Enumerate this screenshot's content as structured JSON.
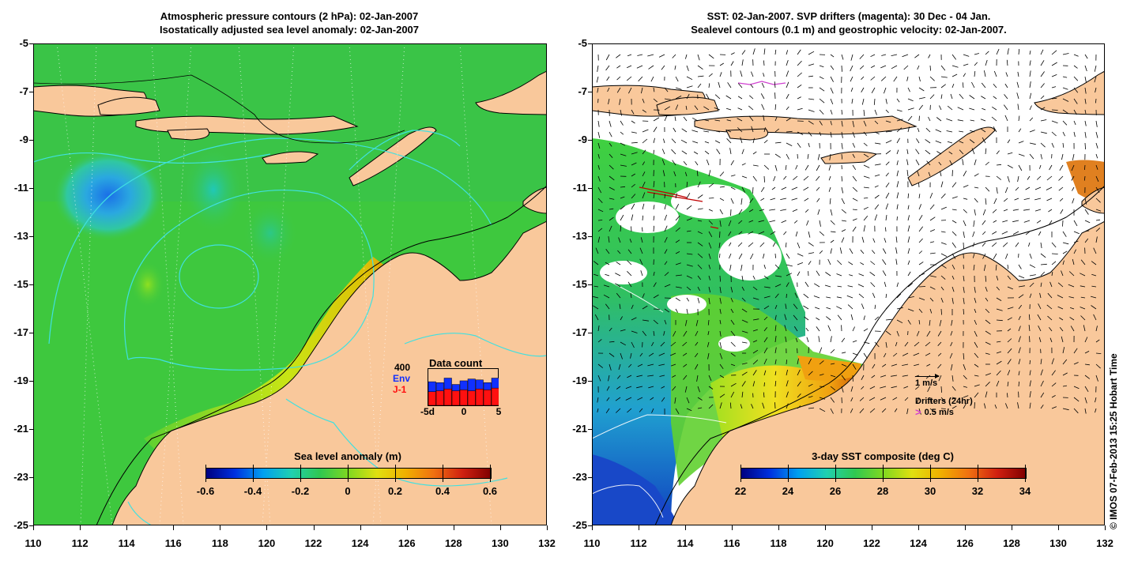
{
  "left_panel": {
    "title_line1": "Atmospheric pressure contours (2 hPa): 02-Jan-2007",
    "title_line2": "Isostatically adjusted sea level anomaly: 02-Jan-2007",
    "colorbar_title": "Sea level anomaly (m)",
    "colorbar_ticks": [
      "-0.6",
      "-0.4",
      "-0.2",
      "0",
      "0.2",
      "0.4",
      "0.6"
    ],
    "data_count": {
      "title": "Data count",
      "max_label": "400",
      "env_label": "Env",
      "j1_label": "J-1",
      "x_ticks": [
        "-5d",
        "0",
        "5"
      ],
      "env_values": [
        260,
        250,
        300,
        230,
        270,
        290,
        280,
        250,
        300
      ],
      "j1_values": [
        150,
        160,
        180,
        160,
        170,
        160,
        180,
        170,
        190
      ]
    }
  },
  "right_panel": {
    "title_line1": "SST: 02-Jan-2007. SVP drifters (magenta): 30 Dec - 04 Jan.",
    "title_line2": "Sealevel contours (0.1 m) and geostrophic velocity: 02-Jan-2007.",
    "colorbar_title": "3-day SST composite (deg C)",
    "colorbar_ticks": [
      "22",
      "24",
      "26",
      "28",
      "30",
      "32",
      "34"
    ],
    "velocity_legend": "1 m/s",
    "drifter_legend_title": "Drifters (24hr)",
    "drifter_legend_speed": "0.5 m/s"
  },
  "axes": {
    "lat_ticks": [
      "-5",
      "-7",
      "-9",
      "-11",
      "-13",
      "-15",
      "-17",
      "-19",
      "-21",
      "-23",
      "-25"
    ],
    "lon_ticks": [
      "110",
      "112",
      "114",
      "116",
      "118",
      "120",
      "122",
      "124",
      "126",
      "128",
      "130",
      "132"
    ]
  },
  "credit": "© IMOS 07-Feb-2013 15:25 Hobart Time",
  "colors": {
    "land": "#f9c89b",
    "ocean_green": "#3ec83e",
    "coast_line": "#000000",
    "contour_cyan": "#40e0e0",
    "env_bar": "#1030ff",
    "j1_bar": "#ff1010"
  }
}
